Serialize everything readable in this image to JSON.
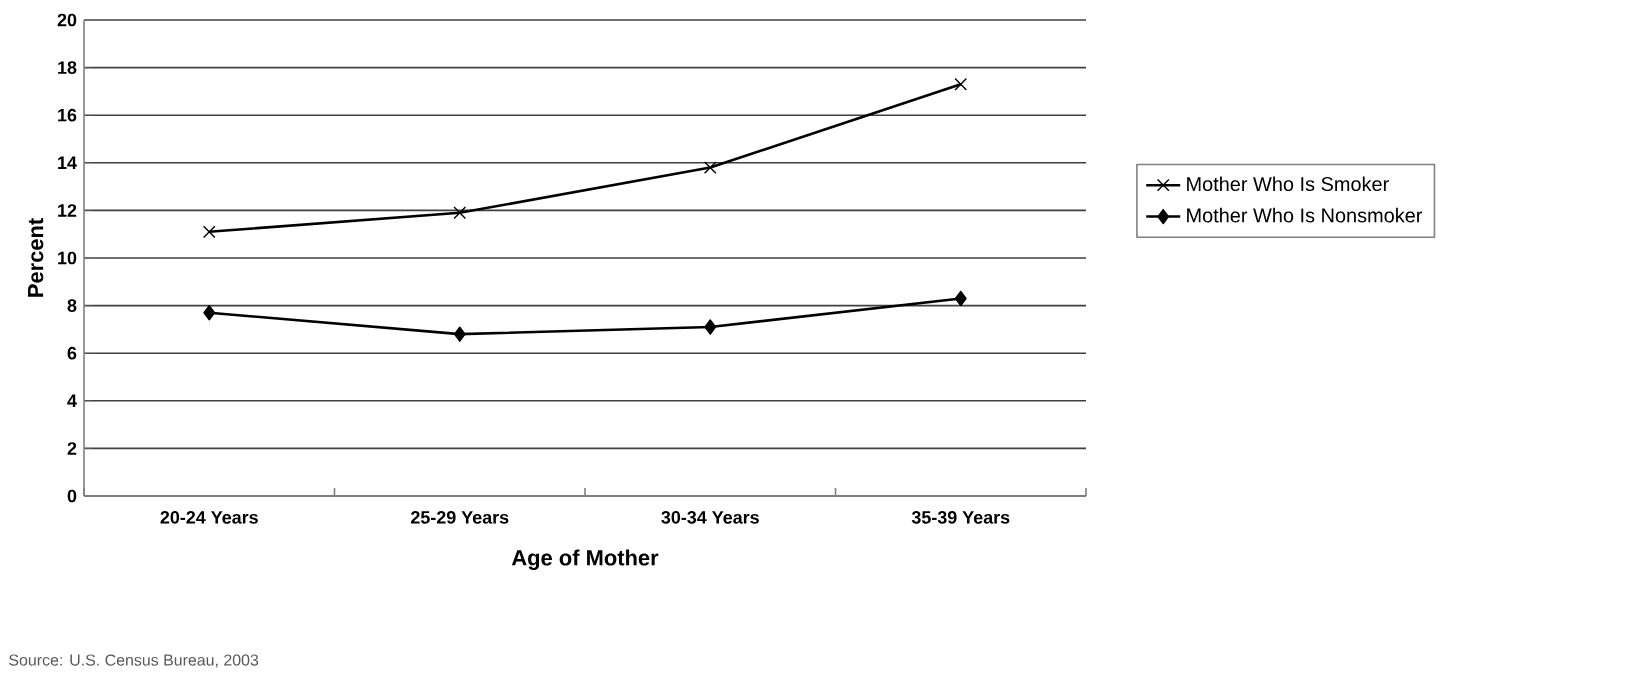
{
  "chart_data": {
    "type": "line",
    "xlabel": "Age of Mother",
    "ylabel": "Percent",
    "categories": [
      "20-24 Years",
      "25-29 Years",
      "30-34 Years",
      "35-39 Years"
    ],
    "series": [
      {
        "name": "Mother Who Is Smoker",
        "color": "#000000",
        "marker": "cross",
        "values": [
          11.1,
          11.9,
          13.8,
          17.3
        ]
      },
      {
        "name": "Mother Who Is Nonsmoker",
        "color": "#000000",
        "marker": "diamond",
        "values": [
          7.7,
          6.8,
          7.1,
          8.3
        ]
      }
    ],
    "ylim": [
      0,
      20
    ],
    "yticks": [
      0,
      2,
      4,
      6,
      8,
      10,
      12,
      14,
      16,
      18,
      20
    ],
    "grid": "y",
    "legend": "right",
    "line_style": "solid",
    "annotations": [
      "Source: U.S. Census Bureau, 2003"
    ]
  }
}
